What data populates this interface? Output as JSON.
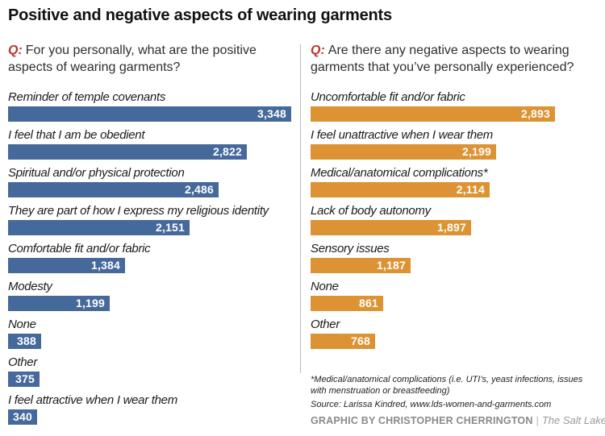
{
  "title": "Positive and negative aspects of wearing garments",
  "colors": {
    "positive_bar": "#46699c",
    "negative_bar": "#dd9333",
    "question_marker_red": "#b5382e",
    "credit_gray": "#8a8a8a"
  },
  "chart_data": [
    {
      "type": "bar",
      "orientation": "horizontal",
      "legend_position": "none",
      "grid": false,
      "question_marker": "Q:",
      "question": "For you personally, what are the positive aspects of wearing garments?",
      "bar_color": "#46699c",
      "xlim": [
        0,
        3400
      ],
      "categories": [
        "Reminder of temple covenants",
        "I feel that I am be obedient",
        "Spiritual and/or physical protection",
        "They are part of how I express my religious identity",
        "Comfortable fit and/or fabric",
        "Modesty",
        "None",
        "Other",
        "I feel attractive when I wear them"
      ],
      "values": [
        3348,
        2822,
        2486,
        2151,
        1384,
        1199,
        388,
        375,
        340
      ],
      "value_labels": [
        "3,348",
        "2,822",
        "2,486",
        "2,151",
        "1,384",
        "1,199",
        "388",
        "375",
        "340"
      ]
    },
    {
      "type": "bar",
      "orientation": "horizontal",
      "legend_position": "none",
      "grid": false,
      "question_marker": "Q:",
      "question": "Are there any negative aspects to wearing garments that you’ve personally experienced?",
      "bar_color": "#dd9333",
      "xlim": [
        0,
        3400
      ],
      "categories": [
        "Uncomfortable fit and/or fabric",
        "I feel unattractive when I wear them",
        "Medical/anatomical complications*",
        "Lack of body autonomy",
        "Sensory issues",
        "None",
        "Other"
      ],
      "values": [
        2893,
        2199,
        2114,
        1897,
        1187,
        861,
        768
      ],
      "value_labels": [
        "2,893",
        "2,199",
        "2,114",
        "1,897",
        "1,187",
        "861",
        "768"
      ]
    }
  ],
  "footer": {
    "medical_footnote": "*Medical/anatomical complications (i.e. UTI’s, yeast infections, issues with menstruation or breastfeeding)",
    "source": "Source: Larissa Kindred, www.lds-women-and-garments.com",
    "credit_bold": "GRAPHIC BY CHRISTOPHER CHERRINGTON",
    "credit_separator": "|",
    "credit_publication": "The Salt Lake Tribune"
  }
}
